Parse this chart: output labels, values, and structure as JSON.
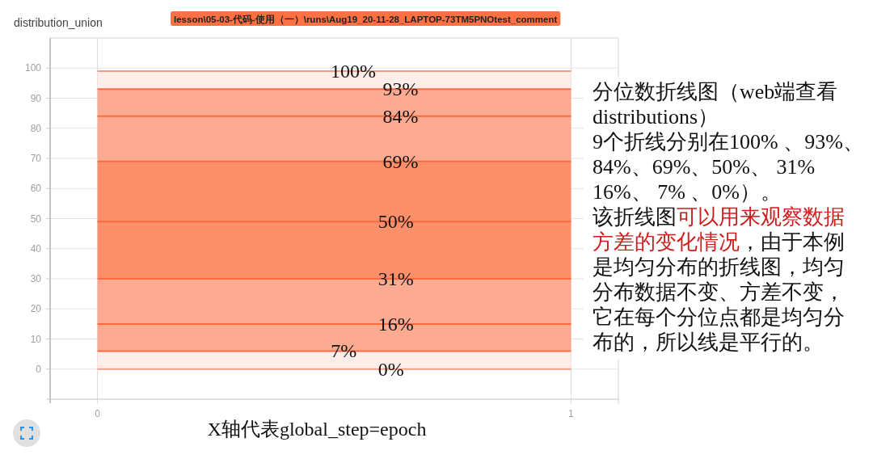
{
  "chart_data": {
    "type": "line",
    "title": "distribution_union",
    "subtitle": "lesson\\05-03-代码-使用（一）\\runs\\Aug19_20-11-28_LAPTOP-73TM5PNOtest_comment",
    "xlabel": "X轴代表global_step=epoch",
    "x": [
      0,
      1
    ],
    "series": [
      {
        "color": "#f0a088",
        "values": [
          99,
          99
        ]
      },
      {
        "color": "#f86c40",
        "values": [
          93,
          93
        ]
      },
      {
        "color": "#f86c40",
        "values": [
          84,
          84
        ]
      },
      {
        "color": "#f86c40",
        "values": [
          69,
          69
        ]
      },
      {
        "color": "#f86c40",
        "values": [
          49,
          49
        ]
      },
      {
        "color": "#f86c40",
        "values": [
          30,
          30
        ]
      },
      {
        "color": "#f86c40",
        "values": [
          15,
          15
        ]
      },
      {
        "color": "#f86c40",
        "values": [
          6,
          6
        ]
      },
      {
        "color": "#f0a088",
        "values": [
          0,
          0
        ]
      }
    ],
    "bands": [
      {
        "axis": "y",
        "from": 0,
        "to": 6,
        "color": "#feede8"
      },
      {
        "axis": "y",
        "from": 6,
        "to": 30,
        "color": "#fcab92"
      },
      {
        "axis": "y",
        "from": 30,
        "to": 69,
        "color": "#fd8f6b"
      },
      {
        "axis": "y",
        "from": 69,
        "to": 93,
        "color": "#fcab92"
      },
      {
        "axis": "y",
        "from": 93,
        "to": 99,
        "color": "#feede8"
      }
    ],
    "xlim": [
      -0.1,
      1.1
    ],
    "xticks": [
      0,
      1
    ],
    "ylim": [
      -10,
      110
    ],
    "yticks": [
      0,
      10,
      20,
      30,
      40,
      50,
      60,
      70,
      80,
      90,
      100
    ],
    "grid": true,
    "annotations": [
      {
        "text": "100%",
        "x": 0.54,
        "y": 99
      },
      {
        "text": "93%",
        "x": 0.64,
        "y": 93
      },
      {
        "text": "84%",
        "x": 0.64,
        "y": 84
      },
      {
        "text": "69%",
        "x": 0.64,
        "y": 69
      },
      {
        "text": "50%",
        "x": 0.63,
        "y": 49
      },
      {
        "text": "31%",
        "x": 0.63,
        "y": 30
      },
      {
        "text": "16%",
        "x": 0.63,
        "y": 15
      },
      {
        "text": "7%",
        "x": 0.52,
        "y": 6
      },
      {
        "text": "0%",
        "x": 0.62,
        "y": 0
      },
      "分位数折线图（web端查看distributions）",
      "9个折线分别在100% 、93%、84%、69%、50%、 31% 16%、 7% 、0%）。",
      "该折线图",
      "可以用来观察数据",
      "方差的变化情况",
      "，由于本例",
      "是均匀分布的折线图，均匀分布数据不变、方差不变，它在每个分位点都是均匀分布的，所以线是平行的。"
    ]
  }
}
